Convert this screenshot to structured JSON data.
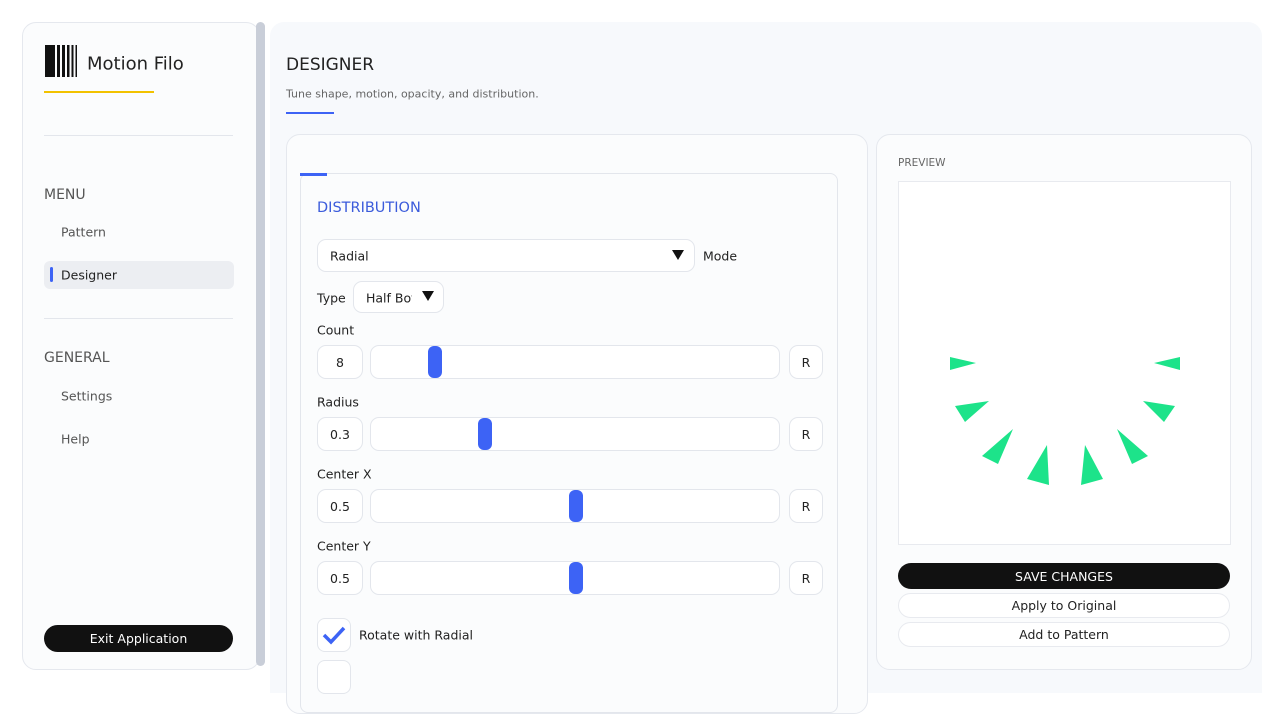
{
  "sidebar": {
    "brand": "Motion Filo",
    "sections": [
      {
        "heading": "MENU",
        "items": [
          "Pattern",
          "Designer"
        ]
      },
      {
        "heading": "GENERAL",
        "items": [
          "Settings",
          "Help"
        ]
      }
    ],
    "exit": "Exit Application"
  },
  "header": {
    "title": "DESIGNER",
    "subtitle": "Tune shape, motion, opacity, and distribution."
  },
  "distribution": {
    "title": "DISTRIBUTION",
    "mode": {
      "value": "Radial",
      "label": "Mode"
    },
    "type": {
      "label": "Type",
      "value": "Half Bot"
    },
    "sliders": [
      {
        "label": "Count",
        "value": 8,
        "reset": "R"
      },
      {
        "label": "Radius",
        "value": 0.3,
        "reset": "R"
      },
      {
        "label": "Center X",
        "value": 0.5,
        "reset": "R"
      },
      {
        "label": "Center Y",
        "value": 0.5,
        "reset": "R"
      }
    ],
    "checkboxes": [
      "Rotate with Radial"
    ]
  },
  "preview": {
    "title": "PREVIEW",
    "buttons": [
      "SAVE CHANGES",
      "Apply to Original",
      "Add to Pattern"
    ]
  }
}
